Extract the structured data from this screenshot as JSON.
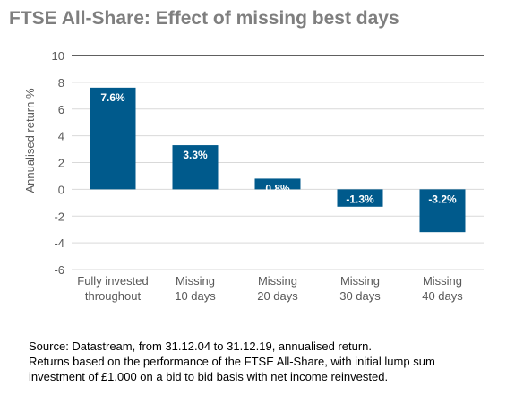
{
  "title": "FTSE All-Share: Effect of missing best days",
  "source_lines": [
    "Source: Datastream, from 31.12.04 to 31.12.19, annualised return.",
    "Returns based on the performance of the FTSE All-Share, with initial lump sum",
    "investment of £1,000 on a bid to bid basis with net income reinvested."
  ],
  "colors": {
    "bar": "#005a8c",
    "title": "#7f7f7f",
    "axis_text": "#595959",
    "grid": "#d9d9d9"
  },
  "chart_data": {
    "type": "bar",
    "title": "FTSE All-Share: Effect of missing best days",
    "ylabel": "Annualised return %",
    "xlabel": "",
    "ylim": [
      -6,
      10
    ],
    "yticks": [
      -6,
      -4,
      -2,
      0,
      2,
      4,
      6,
      8,
      10
    ],
    "grid": true,
    "legend": "none",
    "categories": [
      [
        "Fully invested",
        "throughout"
      ],
      [
        "Missing",
        "10 days"
      ],
      [
        "Missing",
        "20 days"
      ],
      [
        "Missing",
        "30 days"
      ],
      [
        "Missing",
        "40 days"
      ]
    ],
    "values": [
      7.6,
      3.3,
      0.8,
      -1.3,
      -3.2
    ],
    "data_labels": [
      "7.6%",
      "3.3%",
      "0.8%",
      "-1.3%",
      "-3.2%"
    ]
  }
}
